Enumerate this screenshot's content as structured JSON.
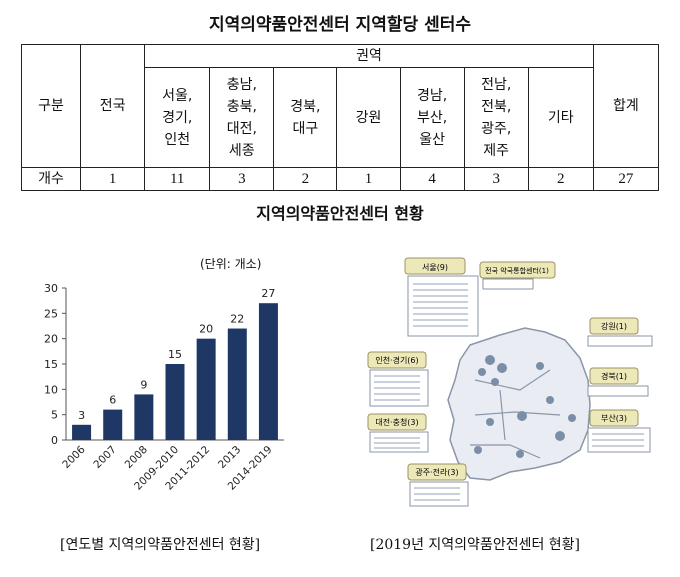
{
  "title": "지역의약품안전센터 지역할당 센터수",
  "table": {
    "header_left": "구분",
    "header_nation": "전국",
    "header_region": "권역",
    "header_total": "합계",
    "regions": [
      "서울,\n경기,\n인천",
      "충남,\n충북,\n대전,\n세종",
      "경북,\n대구",
      "강원",
      "경남,\n부산,\n울산",
      "전남,\n전북,\n광주,\n제주",
      "기타"
    ],
    "row_label": "개수",
    "row_nation": "1",
    "row_values": [
      "11",
      "3",
      "2",
      "1",
      "4",
      "3",
      "2"
    ],
    "row_total": "27"
  },
  "subtitle": "지역의약품안전센터 현황",
  "unit": "(단위: 개소)",
  "chart_data": {
    "type": "bar",
    "categories": [
      "2006",
      "2007",
      "2008",
      "2009-2010",
      "2011-2012",
      "2013",
      "2014-2019"
    ],
    "values": [
      3,
      6,
      9,
      15,
      20,
      22,
      27
    ],
    "ylim": [
      0,
      30
    ],
    "yticks": [
      0,
      5,
      10,
      15,
      20,
      25,
      30
    ],
    "bar_color": "#1f3764"
  },
  "caption_left": "[연도별 지역의약품안전센터 현황]",
  "caption_right": "[2019년 지역의약품안전센터 현황]",
  "map": {
    "boxes": {
      "seoul": "서울(9)",
      "national": "전국 약국통합센터(1)",
      "incheon": "인천·경기(6)",
      "gangwon": "강원(1)",
      "gyeongbuk": "경북(1)",
      "daejeon": "대전·충청(3)",
      "busan": "부산(3)",
      "gwangju": "광주·전라(3)"
    }
  }
}
